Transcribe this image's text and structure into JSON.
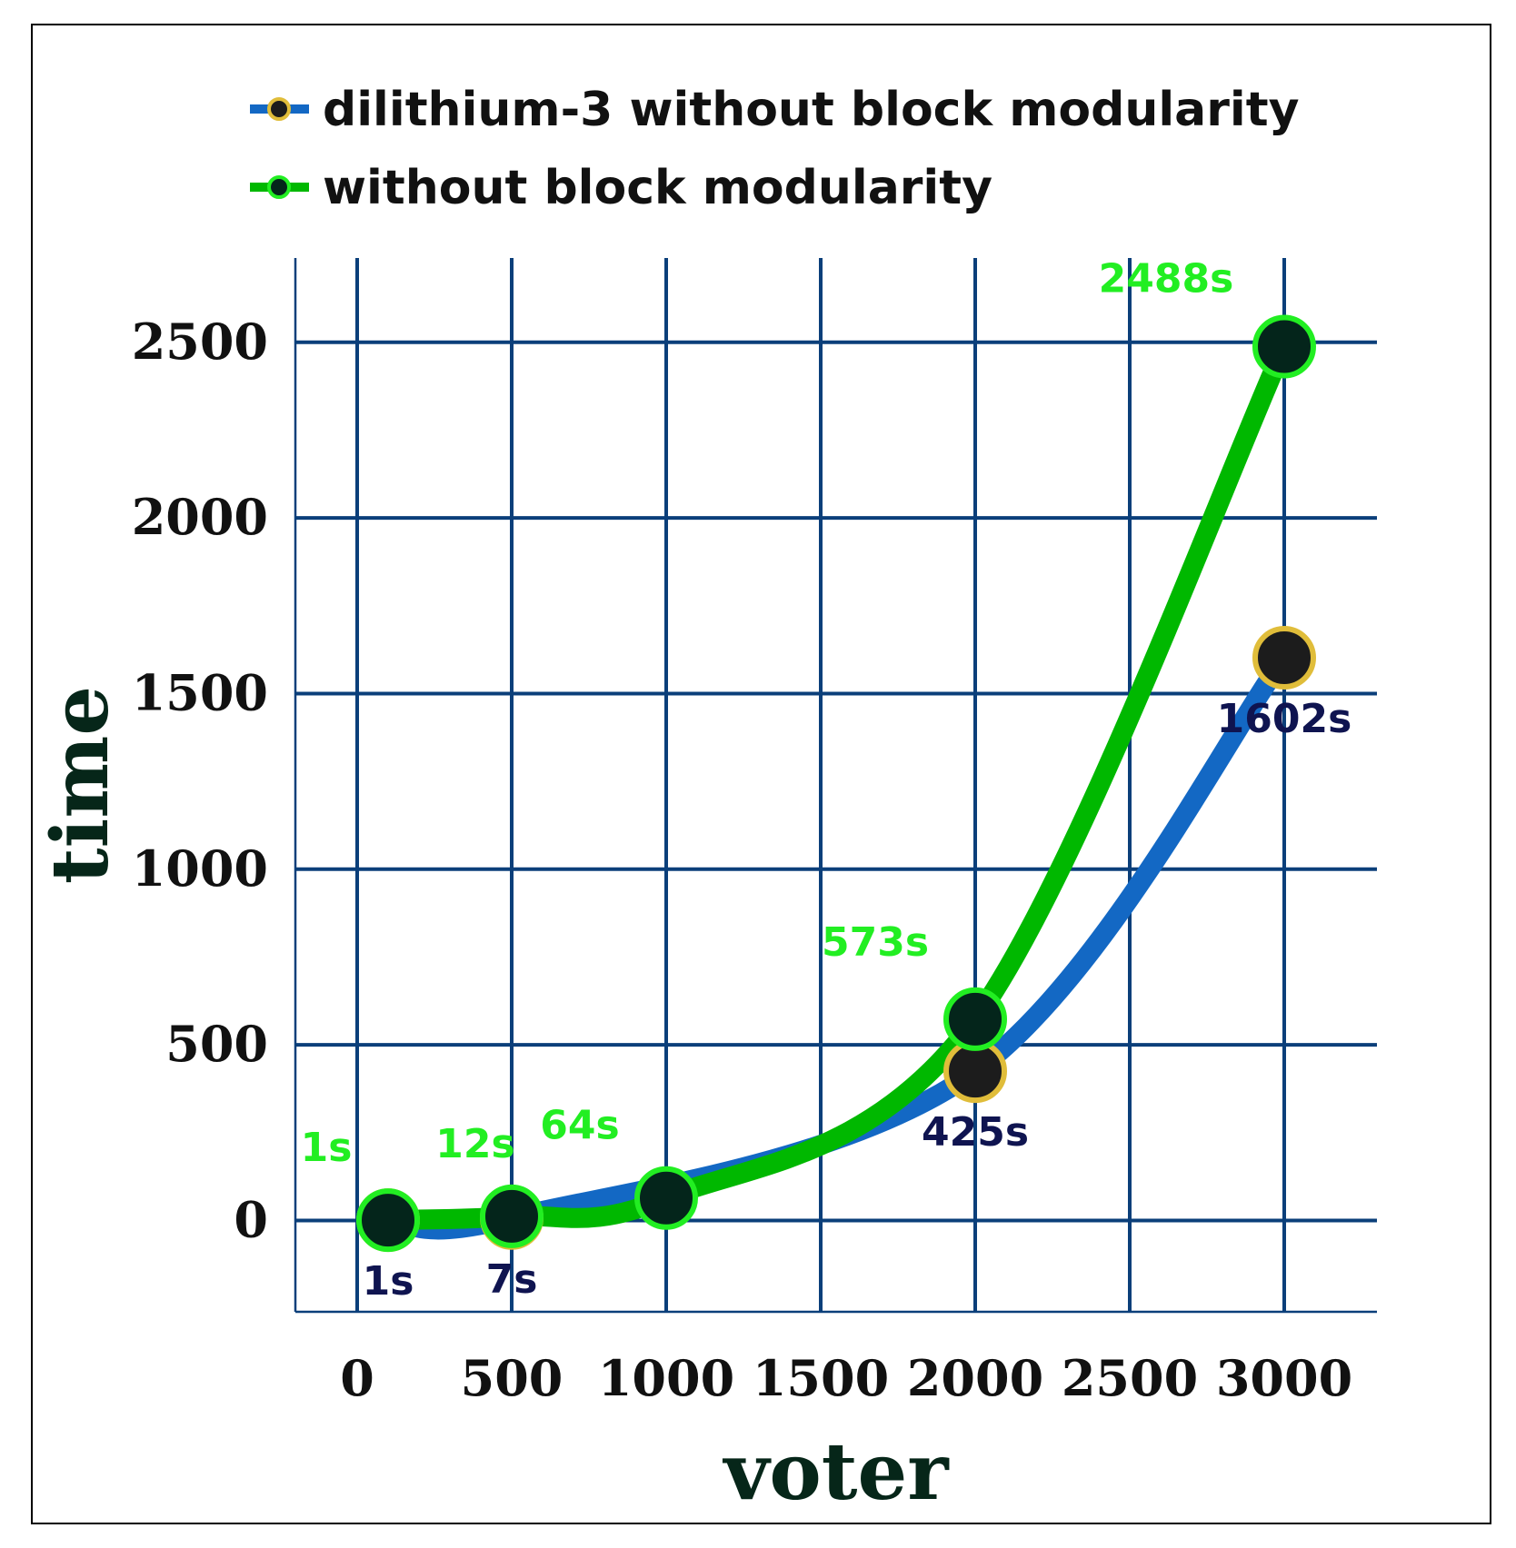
{
  "chart_data": {
    "type": "line",
    "title": "",
    "xlabel": "voter",
    "ylabel": "time",
    "xlim": [
      -200,
      3300
    ],
    "ylim": [
      -260,
      2740
    ],
    "xticks": [
      0,
      500,
      1000,
      1500,
      2000,
      2500,
      3000
    ],
    "yticks": [
      0,
      500,
      1000,
      1500,
      2000,
      2500
    ],
    "xtick_labels": [
      "0",
      "500",
      "1000",
      "1500",
      "2000",
      "2500",
      "3000"
    ],
    "ytick_labels": [
      "0",
      "500",
      "1000",
      "1500",
      "2000",
      "2500"
    ],
    "grid": true,
    "legend_position": "top",
    "series": [
      {
        "name": "dilithium-3 without block modularity",
        "line_color": "#1368c4",
        "marker_fill": "#1c1c1c",
        "marker_edge": "#e0bd3a",
        "label_color": "#0f1450",
        "label_position": "below",
        "points": [
          {
            "x": 100,
            "y": 1,
            "label": "1s"
          },
          {
            "x": 500,
            "y": 7,
            "label": "7s"
          },
          {
            "x": 2000,
            "y": 425,
            "label": "425s"
          },
          {
            "x": 3000,
            "y": 1602,
            "label": "1602s"
          }
        ]
      },
      {
        "name": "without block modularity",
        "line_color": "#00b800",
        "marker_fill": "#04251b",
        "marker_edge": "#22ee22",
        "label_color": "#22ee22",
        "label_position": "above",
        "points": [
          {
            "x": 100,
            "y": 1,
            "label": "1s"
          },
          {
            "x": 500,
            "y": 12,
            "label": "12s"
          },
          {
            "x": 1000,
            "y": 64,
            "label": "64s"
          },
          {
            "x": 2000,
            "y": 573,
            "label": "573s"
          },
          {
            "x": 3000,
            "y": 2488,
            "label": "2488s"
          }
        ]
      }
    ]
  }
}
